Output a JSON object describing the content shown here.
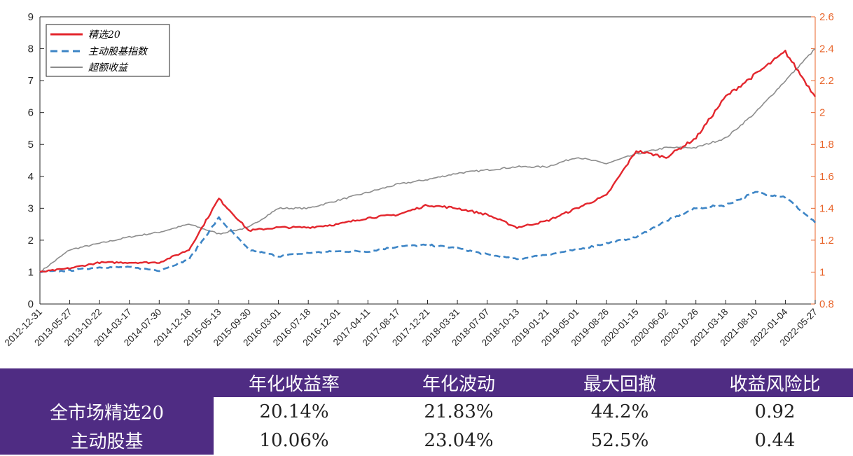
{
  "chart_data": {
    "type": "line",
    "title": "",
    "xlabel": "",
    "ylabel": "",
    "ylim_left": [
      0,
      9
    ],
    "ylim_right": [
      0.8,
      2.6
    ],
    "yticks_left": [
      "0",
      "1",
      "2",
      "3",
      "4",
      "5",
      "6",
      "7",
      "8",
      "9"
    ],
    "yticks_right": [
      "0.8",
      "1",
      "1.2",
      "1.4",
      "1.6",
      "1.8",
      "2",
      "2.2",
      "2.4",
      "2.6"
    ],
    "right_axis_color": "#e8642a",
    "grid": false,
    "legend_position": "top-left",
    "x_dates": [
      "2012-12-31",
      "2013-05-27",
      "2013-10-22",
      "2014-03-17",
      "2014-07-30",
      "2014-12-18",
      "2015-05-13",
      "2015-09-30",
      "2016-03-01",
      "2016-07-18",
      "2016-12-01",
      "2017-04-11",
      "2017-08-17",
      "2017-12-21",
      "2018-03-31",
      "2018-07-07",
      "2018-10-13",
      "2019-01-21",
      "2019-05-01",
      "2019-08-26",
      "2020-01-15",
      "2020-06-02",
      "2020-10-26",
      "2021-03-18",
      "2021-08-10",
      "2022-01-04",
      "2022-05-27"
    ],
    "series": [
      {
        "name": "精选20",
        "axis": "left",
        "color": "#e3262d",
        "style": "solid",
        "values": [
          1.0,
          1.12,
          1.3,
          1.3,
          1.3,
          1.7,
          3.3,
          2.3,
          2.4,
          2.4,
          2.5,
          2.7,
          2.8,
          3.1,
          3.0,
          2.8,
          2.4,
          2.6,
          3.0,
          3.4,
          4.8,
          4.6,
          5.2,
          6.5,
          7.2,
          7.9,
          6.5
        ]
      },
      {
        "name": "主动股基指数",
        "axis": "left",
        "color": "#3d85c6",
        "style": "dashed",
        "values": [
          1.0,
          1.05,
          1.15,
          1.15,
          1.05,
          1.4,
          2.7,
          1.7,
          1.5,
          1.6,
          1.65,
          1.65,
          1.8,
          1.85,
          1.75,
          1.55,
          1.4,
          1.55,
          1.7,
          1.9,
          2.1,
          2.6,
          3.0,
          3.1,
          3.5,
          3.35,
          2.55
        ]
      },
      {
        "name": "超额收益",
        "axis": "right",
        "color": "#8c8c8c",
        "style": "solid",
        "values": [
          1.0,
          1.14,
          1.18,
          1.22,
          1.25,
          1.3,
          1.24,
          1.28,
          1.4,
          1.4,
          1.45,
          1.5,
          1.55,
          1.58,
          1.62,
          1.64,
          1.66,
          1.66,
          1.72,
          1.68,
          1.74,
          1.78,
          1.78,
          1.84,
          2.0,
          2.2,
          2.4
        ]
      }
    ]
  },
  "table": {
    "headers": [
      "年化收益率",
      "年化波动",
      "最大回撤",
      "收益风险比"
    ],
    "rows": [
      {
        "name": "全市场精选20",
        "values": [
          "20.14%",
          "21.83%",
          "44.2%",
          "0.92"
        ]
      },
      {
        "name": "主动股基",
        "values": [
          "10.06%",
          "23.04%",
          "52.5%",
          "0.44"
        ]
      }
    ]
  },
  "colors": {
    "table_purple": "#4f2c83"
  }
}
